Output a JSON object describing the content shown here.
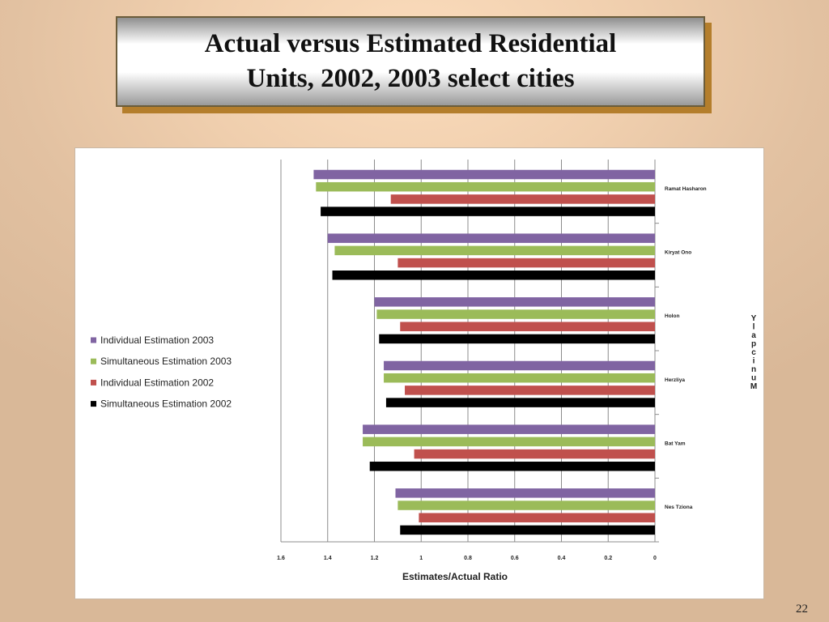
{
  "slide": {
    "title_line1": "Actual versus Estimated Residential",
    "title_line2": "Units, 2002, 2003 select cities",
    "page_number": "22"
  },
  "chart_data": {
    "type": "bar",
    "orientation": "horizontal",
    "x_reversed": true,
    "categories": [
      "Ramat Hasharon",
      "Kiryat Ono",
      "Holon",
      "Herzliya",
      "Bat Yam",
      "Nes Tziona"
    ],
    "series": [
      {
        "name": "Individual Estimation 2003",
        "color": "#8064a2",
        "values": [
          1.46,
          1.4,
          1.2,
          1.16,
          1.25,
          1.11
        ]
      },
      {
        "name": "Simultaneous Estimation 2003",
        "color": "#9bbb59",
        "values": [
          1.45,
          1.37,
          1.19,
          1.16,
          1.25,
          1.1
        ]
      },
      {
        "name": "Individual Estimation 2002",
        "color": "#c0504d",
        "values": [
          1.13,
          1.1,
          1.09,
          1.07,
          1.03,
          1.01
        ]
      },
      {
        "name": "Simultaneous Estimation 2002",
        "color": "#000000",
        "values": [
          1.43,
          1.38,
          1.18,
          1.15,
          1.22,
          1.09
        ]
      }
    ],
    "xlabel": "Estimates/Actual Ratio",
    "ylabel": "Y\nl\na\np\nc\ni\nn\nu\nM",
    "xlim": [
      0,
      1.6
    ],
    "x_ticks": [
      "1.6",
      "1.4",
      "1.2",
      "1",
      "0.8",
      "0.6",
      "0.4",
      "0.2",
      "0"
    ],
    "grid": true,
    "legend_position": "left"
  }
}
